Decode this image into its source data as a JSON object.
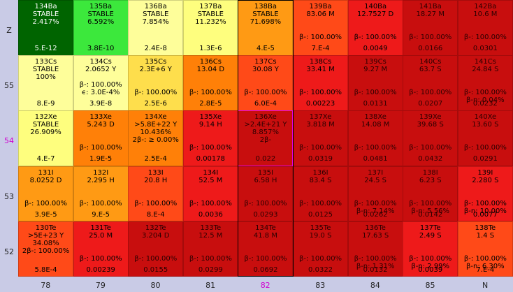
{
  "row_labels": [
    "Z",
    "55",
    "54",
    "53",
    "52"
  ],
  "highlight_row": 2,
  "col_labels": [
    "78",
    "79",
    "80",
    "81",
    "82",
    "83",
    "84",
    "85",
    "N"
  ],
  "highlight_col": 4,
  "highlight_cell": [
    2,
    4
  ],
  "palette": {
    "dark_green": "#006400",
    "green": "#3ce83c",
    "yellow": "#fefe7e",
    "light_yellow": "#fefe9a",
    "gold": "#fede4c",
    "orange": "#ff9a14",
    "dark_orange": "#ff8008",
    "red_orange": "#ff4a18",
    "red": "#ee1a1a",
    "crimson": "#c80e0e",
    "dark_red": "#b00a0a"
  },
  "cells": [
    [
      {
        "lines": [
          "134Ba",
          "STABLE",
          "2.417%"
        ],
        "bottom": "5.E-12",
        "color": "dark_green"
      },
      {
        "lines": [
          "135Ba",
          "STABLE",
          "6.592%"
        ],
        "bottom": "3.8E-10",
        "color": "green"
      },
      {
        "lines": [
          "136Ba",
          "STABLE",
          "7.854%"
        ],
        "bottom": "2.4E-8",
        "color": "light_yellow"
      },
      {
        "lines": [
          "137Ba",
          "STABLE",
          "11.232%"
        ],
        "bottom": "1.3E-6",
        "color": "yellow"
      },
      {
        "lines": [
          "138Ba",
          "STABLE",
          "71.698%"
        ],
        "bottom": "4.E-5",
        "color": "orange"
      },
      {
        "lines": [
          "139Ba",
          "83.06 M",
          "",
          "",
          "β-: 100.00%"
        ],
        "bottom": "7.E-4",
        "color": "red_orange"
      },
      {
        "lines": [
          "140Ba",
          "12.7527 D",
          "",
          "",
          "β-: 100.00%"
        ],
        "bottom": "0.0049",
        "color": "red"
      },
      {
        "lines": [
          "141Ba",
          "18.27 M",
          "",
          "",
          "β-: 100.00%"
        ],
        "bottom": "0.0166",
        "color": "crimson"
      },
      {
        "lines": [
          "142Ba",
          "10.6 M",
          "",
          "",
          "β-: 100.00%"
        ],
        "bottom": "0.0301",
        "color": "crimson"
      }
    ],
    [
      {
        "lines": [
          "133Cs",
          "STABLE",
          "100%"
        ],
        "bottom": "8.E-9",
        "color": "light_yellow"
      },
      {
        "lines": [
          "134Cs",
          "2.0652 Y",
          "",
          "β-: 100.00%",
          "ϵ: 3.0E-4%"
        ],
        "bottom": "3.9E-8",
        "color": "light_yellow"
      },
      {
        "lines": [
          "135Cs",
          "2.3E+6 Y",
          "",
          "",
          "β-: 100.00%"
        ],
        "bottom": "2.5E-6",
        "color": "gold"
      },
      {
        "lines": [
          "136Cs",
          "13.04 D",
          "",
          "",
          "β-: 100.00%"
        ],
        "bottom": "2.8E-5",
        "color": "dark_orange"
      },
      {
        "lines": [
          "137Cs",
          "30.08 Y",
          "",
          "",
          "β-: 100.00%"
        ],
        "bottom": "6.0E-4",
        "color": "red_orange"
      },
      {
        "lines": [
          "138Cs",
          "33.41 M",
          "",
          "",
          "β-: 100.00%"
        ],
        "bottom": "0.00223",
        "color": "red"
      },
      {
        "lines": [
          "139Cs",
          "9.27 M",
          "",
          "",
          "β-: 100.00%"
        ],
        "bottom": "0.0131",
        "color": "crimson"
      },
      {
        "lines": [
          "140Cs",
          "63.7 S",
          "",
          "",
          "β-: 100.00%"
        ],
        "bottom": "0.0207",
        "color": "crimson"
      },
      {
        "lines": [
          "141Cs",
          "24.84 S",
          "",
          "",
          "β-: 100.00%",
          "β-n: 0.04%"
        ],
        "bottom": "0.0232",
        "color": "crimson"
      }
    ],
    [
      {
        "lines": [
          "132Xe",
          "STABLE",
          "26.909%"
        ],
        "bottom": "4.E-7",
        "color": "yellow"
      },
      {
        "lines": [
          "133Xe",
          "5.243 D",
          "",
          "",
          "β-: 100.00%"
        ],
        "bottom": "1.9E-5",
        "color": "dark_orange"
      },
      {
        "lines": [
          "134Xe",
          ">5.8E+22 Y",
          "10.436%",
          "2β-: ≥ 0.00%"
        ],
        "bottom": "2.5E-4",
        "color": "dark_orange"
      },
      {
        "lines": [
          "135Xe",
          "9.14 H",
          "",
          "",
          "β-: 100.00%"
        ],
        "bottom": "0.00178",
        "color": "red"
      },
      {
        "lines": [
          "136Xe",
          ">2.4E+21 Y",
          "8.857%",
          "2β-"
        ],
        "bottom": "0.022",
        "color": "crimson"
      },
      {
        "lines": [
          "137Xe",
          "3.818 M",
          "",
          "",
          "β-: 100.00%"
        ],
        "bottom": "0.0319",
        "color": "crimson"
      },
      {
        "lines": [
          "138Xe",
          "14.08 M",
          "",
          "",
          "β-: 100.00%"
        ],
        "bottom": "0.0481",
        "color": "crimson"
      },
      {
        "lines": [
          "139Xe",
          "39.68 S",
          "",
          "",
          "β-: 100.00%"
        ],
        "bottom": "0.0432",
        "color": "crimson"
      },
      {
        "lines": [
          "140Xe",
          "13.60 S",
          "",
          "",
          "β-: 100.00%"
        ],
        "bottom": "0.0291",
        "color": "crimson"
      }
    ],
    [
      {
        "lines": [
          "131I",
          "8.0252 D",
          "",
          "",
          "β-: 100.00%"
        ],
        "bottom": "3.9E-5",
        "color": "orange"
      },
      {
        "lines": [
          "132I",
          "2.295 H",
          "",
          "",
          "β-: 100.00%"
        ],
        "bottom": "9.E-5",
        "color": "orange"
      },
      {
        "lines": [
          "133I",
          "20.8 H",
          "",
          "",
          "β-: 100.00%"
        ],
        "bottom": "8.E-4",
        "color": "red_orange"
      },
      {
        "lines": [
          "134I",
          "52.5 M",
          "",
          "",
          "β-: 100.00%"
        ],
        "bottom": "0.0036",
        "color": "red"
      },
      {
        "lines": [
          "135I",
          "6.58 H",
          "",
          "",
          "β-: 100.00%"
        ],
        "bottom": "0.0293",
        "color": "crimson"
      },
      {
        "lines": [
          "136I",
          "83.4 S",
          "",
          "",
          "β-: 100.00%"
        ],
        "bottom": "0.0125",
        "color": "crimson"
      },
      {
        "lines": [
          "137I",
          "24.5 S",
          "",
          "",
          "β-: 100.00%",
          "β-n: 7.14%"
        ],
        "bottom": "0.0262",
        "color": "crimson"
      },
      {
        "lines": [
          "138I",
          "6.23 S",
          "",
          "",
          "β-: 100.00%",
          "β-n: 5.56%"
        ],
        "bottom": "0.0142",
        "color": "crimson"
      },
      {
        "lines": [
          "139I",
          "2.280 S",
          "",
          "",
          "β-: 100.00%",
          "β-n: 10.00%"
        ],
        "bottom": "0.0077",
        "color": "red"
      }
    ],
    [
      {
        "lines": [
          "130Te",
          ">5E+23 Y",
          "34.08%",
          "2β-: 100.00%"
        ],
        "bottom": "5.8E-4",
        "color": "red_orange"
      },
      {
        "lines": [
          "131Te",
          "25.0 M",
          "",
          "",
          "β-: 100.00%"
        ],
        "bottom": "0.00239",
        "color": "red"
      },
      {
        "lines": [
          "132Te",
          "3.204 D",
          "",
          "",
          "β-: 100.00%"
        ],
        "bottom": "0.0155",
        "color": "crimson"
      },
      {
        "lines": [
          "133Te",
          "12.5 M",
          "",
          "",
          "β-: 100.00%"
        ],
        "bottom": "0.0299",
        "color": "crimson"
      },
      {
        "lines": [
          "134Te",
          "41.8 M",
          "",
          "",
          "β-: 100.00%"
        ],
        "bottom": "0.0692",
        "color": "crimson"
      },
      {
        "lines": [
          "135Te",
          "19.0 S",
          "",
          "",
          "β-: 100.00%"
        ],
        "bottom": "0.0322",
        "color": "crimson"
      },
      {
        "lines": [
          "136Te",
          "17.63 S",
          "",
          "",
          "β-: 100.00%",
          "β-n: 1.31%"
        ],
        "bottom": "0.0132",
        "color": "crimson"
      },
      {
        "lines": [
          "137Te",
          "2.49 S",
          "",
          "",
          "β-: 100.00%",
          "β-n: 2.99%"
        ],
        "bottom": "0.0039",
        "color": "red"
      },
      {
        "lines": [
          "138Te",
          "1.4 S",
          "",
          "",
          "β-: 100.00%",
          "β-n: 6.30%"
        ],
        "bottom": "7.E-4",
        "color": "red_orange"
      }
    ]
  ]
}
